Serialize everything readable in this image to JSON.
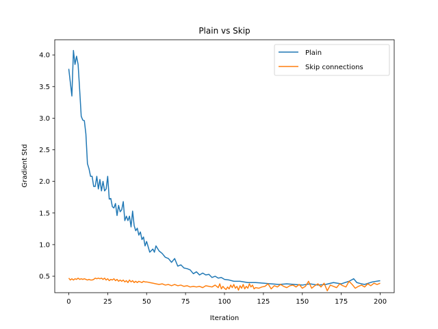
{
  "chart_data": {
    "type": "line",
    "title": "Plain vs Skip",
    "xlabel": "Iteration",
    "ylabel": "Gradient Std",
    "xlim": [
      -9,
      209
    ],
    "ylim": [
      0.24,
      4.24
    ],
    "xticks": [
      0,
      25,
      50,
      75,
      100,
      125,
      150,
      175,
      200
    ],
    "yticks": [
      0.5,
      1.0,
      1.5,
      2.0,
      2.5,
      3.0,
      3.5,
      4.0
    ],
    "grid": false,
    "legend_position": "upper right",
    "series": [
      {
        "name": "Plain",
        "color": "#1f77b4",
        "x": [
          0,
          2,
          3,
          4,
          5,
          6,
          7,
          8,
          9,
          10,
          11,
          12,
          13,
          14,
          15,
          16,
          17,
          18,
          19,
          20,
          21,
          22,
          23,
          24,
          25,
          26,
          27,
          28,
          29,
          30,
          31,
          32,
          33,
          34,
          35,
          36,
          37,
          38,
          39,
          40,
          41,
          42,
          43,
          44,
          45,
          46,
          47,
          48,
          49,
          50,
          52,
          54,
          55,
          56,
          58,
          60,
          62,
          64,
          66,
          68,
          70,
          72,
          74,
          76,
          78,
          80,
          82,
          84,
          86,
          88,
          90,
          92,
          94,
          96,
          98,
          100,
          103,
          106,
          110,
          115,
          120,
          125,
          130,
          135,
          140,
          145,
          150,
          155,
          160,
          165,
          170,
          175,
          180,
          183,
          185,
          188,
          190,
          195,
          200
        ],
        "y": [
          3.78,
          3.35,
          4.07,
          3.85,
          3.98,
          3.85,
          3.45,
          3.03,
          2.97,
          2.96,
          2.75,
          2.28,
          2.2,
          2.08,
          2.08,
          1.92,
          1.92,
          2.08,
          1.88,
          2.03,
          1.85,
          2.0,
          1.85,
          1.88,
          2.08,
          1.72,
          1.73,
          1.6,
          1.58,
          1.65,
          1.46,
          1.62,
          1.52,
          1.55,
          1.68,
          1.38,
          1.45,
          1.38,
          1.45,
          1.28,
          1.53,
          1.3,
          1.22,
          1.26,
          1.15,
          1.2,
          1.08,
          1.12,
          0.98,
          1.05,
          0.88,
          0.93,
          0.88,
          0.98,
          0.9,
          0.86,
          0.8,
          0.78,
          0.72,
          0.78,
          0.66,
          0.68,
          0.63,
          0.62,
          0.6,
          0.54,
          0.57,
          0.52,
          0.55,
          0.52,
          0.53,
          0.48,
          0.5,
          0.47,
          0.48,
          0.45,
          0.44,
          0.42,
          0.42,
          0.4,
          0.4,
          0.39,
          0.38,
          0.37,
          0.38,
          0.37,
          0.36,
          0.38,
          0.36,
          0.37,
          0.4,
          0.38,
          0.42,
          0.46,
          0.4,
          0.38,
          0.37,
          0.41,
          0.43
        ]
      },
      {
        "name": "Skip connections",
        "color": "#ff7f0e",
        "x": [
          0,
          1,
          2,
          3,
          4,
          5,
          6,
          7,
          8,
          9,
          10,
          11,
          12,
          13,
          14,
          15,
          16,
          17,
          18,
          19,
          20,
          21,
          22,
          23,
          24,
          25,
          26,
          27,
          28,
          29,
          30,
          31,
          32,
          33,
          34,
          35,
          36,
          37,
          38,
          39,
          40,
          41,
          42,
          43,
          44,
          45,
          46,
          47,
          48,
          49,
          50,
          52,
          54,
          56,
          58,
          60,
          62,
          64,
          66,
          68,
          70,
          72,
          74,
          76,
          78,
          80,
          82,
          84,
          86,
          88,
          90,
          92,
          94,
          96,
          97,
          98,
          99,
          100,
          101,
          102,
          103,
          104,
          105,
          106,
          107,
          108,
          109,
          110,
          111,
          112,
          113,
          114,
          115,
          116,
          117,
          118,
          119,
          120,
          122,
          124,
          126,
          128,
          130,
          132,
          134,
          136,
          138,
          140,
          142,
          144,
          146,
          148,
          150,
          152,
          154,
          156,
          158,
          160,
          162,
          164,
          166,
          168,
          170,
          172,
          174,
          176,
          178,
          180,
          182,
          184,
          186,
          188,
          190,
          192,
          194,
          196,
          198,
          200
        ],
        "y": [
          0.47,
          0.44,
          0.46,
          0.44,
          0.46,
          0.45,
          0.47,
          0.45,
          0.46,
          0.45,
          0.46,
          0.45,
          0.44,
          0.45,
          0.44,
          0.44,
          0.45,
          0.47,
          0.46,
          0.47,
          0.46,
          0.47,
          0.45,
          0.47,
          0.44,
          0.46,
          0.43,
          0.45,
          0.44,
          0.46,
          0.43,
          0.45,
          0.42,
          0.44,
          0.42,
          0.44,
          0.41,
          0.43,
          0.4,
          0.44,
          0.41,
          0.43,
          0.4,
          0.42,
          0.4,
          0.42,
          0.41,
          0.4,
          0.42,
          0.41,
          0.41,
          0.4,
          0.39,
          0.38,
          0.37,
          0.38,
          0.36,
          0.37,
          0.35,
          0.37,
          0.35,
          0.36,
          0.34,
          0.35,
          0.33,
          0.34,
          0.33,
          0.34,
          0.32,
          0.35,
          0.34,
          0.33,
          0.36,
          0.32,
          0.38,
          0.3,
          0.34,
          0.31,
          0.29,
          0.33,
          0.3,
          0.36,
          0.32,
          0.37,
          0.31,
          0.34,
          0.28,
          0.35,
          0.31,
          0.37,
          0.3,
          0.34,
          0.31,
          0.38,
          0.33,
          0.36,
          0.3,
          0.32,
          0.31,
          0.33,
          0.34,
          0.38,
          0.3,
          0.35,
          0.33,
          0.37,
          0.34,
          0.32,
          0.35,
          0.36,
          0.33,
          0.37,
          0.31,
          0.34,
          0.42,
          0.31,
          0.35,
          0.38,
          0.33,
          0.39,
          0.27,
          0.36,
          0.34,
          0.32,
          0.38,
          0.35,
          0.33,
          0.42,
          0.37,
          0.31,
          0.34,
          0.36,
          0.33,
          0.38,
          0.35,
          0.39,
          0.37,
          0.39
        ]
      }
    ]
  }
}
